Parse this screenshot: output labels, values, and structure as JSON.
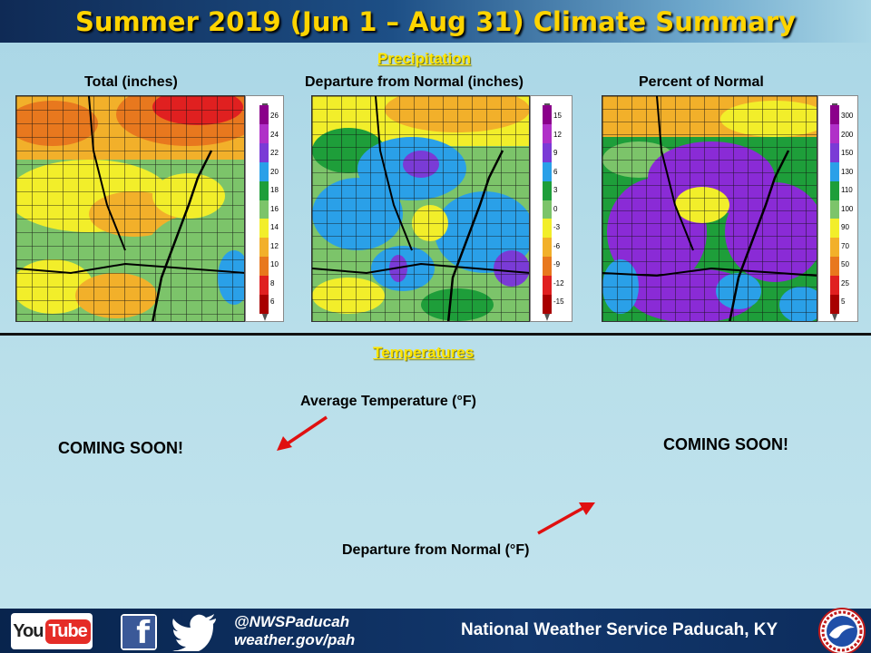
{
  "title": "Summer 2019 (Jun 1 – Aug 31) Climate Summary",
  "precip_section": "Precipitation",
  "temp_section": "Temperatures",
  "maps": [
    {
      "label": "Total (inches)",
      "legend": [
        "26",
        "24",
        "22",
        "20",
        "18",
        "16",
        "14",
        "12",
        "10",
        "8",
        "6"
      ]
    },
    {
      "label": "Departure from Normal (inches)",
      "legend": [
        "15",
        "12",
        "9",
        "6",
        "3",
        "0",
        "-3",
        "-6",
        "-9",
        "-12",
        "-15"
      ]
    },
    {
      "label": "Percent of Normal",
      "legend": [
        "300",
        "200",
        "150",
        "130",
        "110",
        "100",
        "90",
        "70",
        "50",
        "25",
        "5"
      ]
    }
  ],
  "legend_colors": [
    "#8a008a",
    "#b030c8",
    "#7a3bd6",
    "#2aa0e8",
    "#1e9e3a",
    "#7cc46a",
    "#f2ee2a",
    "#f2b02a",
    "#e8781e",
    "#e02020",
    "#a80000"
  ],
  "temp": {
    "avg_caption": "Average Temperature (°F)",
    "dep_caption": "Departure from Normal (°F)",
    "coming_left": "COMING SOON!",
    "coming_right": "COMING SOON!"
  },
  "footer": {
    "youtube_you": "You",
    "youtube_tube": "Tube",
    "facebook": "f",
    "handle": "@NWSPaducah",
    "website": "weather.gov/pah",
    "office": "National Weather Service Paducah, KY"
  },
  "arrow_color": "#e01010"
}
